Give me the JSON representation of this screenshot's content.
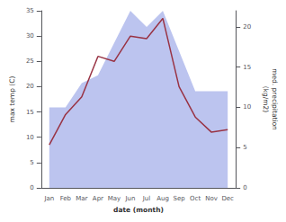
{
  "chart_data": {
    "type": "line",
    "xlabel": "date (month)",
    "ylabel": "max temp (C)",
    "y2label": "med. precipitation\n(kg/m2)",
    "categories": [
      "Jan",
      "Feb",
      "Mar",
      "Apr",
      "May",
      "Jun",
      "Jul",
      "Aug",
      "Sep",
      "Oct",
      "Nov",
      "Dec"
    ],
    "series": [
      {
        "type": "area",
        "axis": "y2",
        "color": "#bcc4ef",
        "values": [
          10.0,
          10.0,
          13.0,
          14.0,
          18.0,
          22.0,
          20.0,
          22.0,
          17.0,
          12.0,
          12.0,
          12.0
        ]
      },
      {
        "type": "line",
        "color": "#993344",
        "values": [
          8.5,
          14.5,
          18.0,
          26.0,
          25.0,
          30.0,
          29.5,
          33.5,
          20.0,
          14.0,
          11.0,
          11.5
        ]
      }
    ],
    "ylim": [
      0,
      35
    ],
    "yticks": [
      0,
      5,
      10,
      15,
      20,
      25,
      30,
      35
    ],
    "y2lim": [
      0,
      22
    ],
    "y2ticks": [
      0,
      5,
      10,
      15,
      20
    ],
    "grid": false
  }
}
